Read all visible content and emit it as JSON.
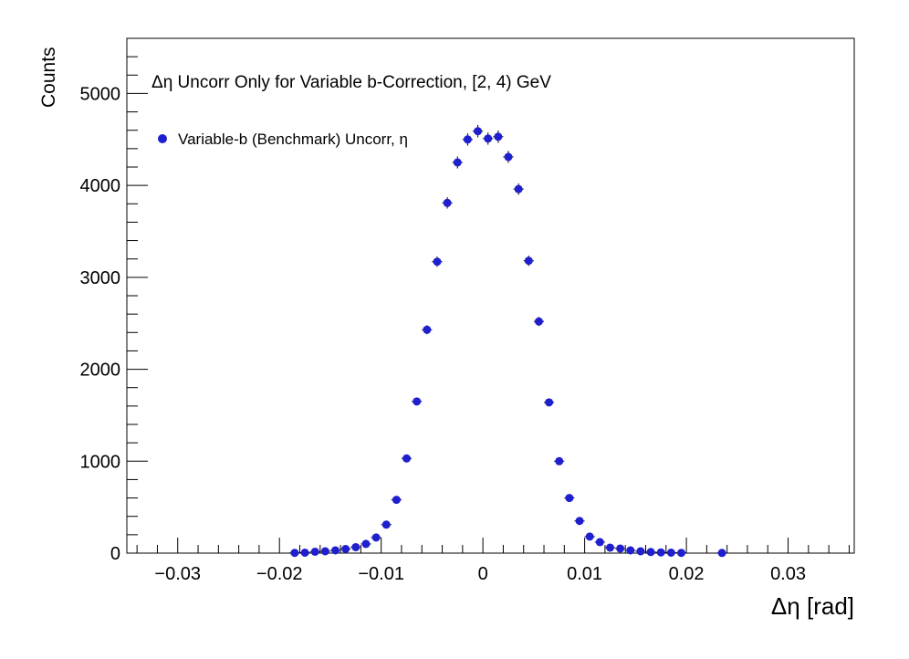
{
  "chart_data": {
    "type": "scatter",
    "title": "Δη Uncorr Only for Variable b-Correction, [2, 4) GeV",
    "xlabel": "Δη  [rad]",
    "ylabel": "Counts",
    "xlim": [
      -0.035,
      0.0365
    ],
    "ylim": [
      0,
      5600
    ],
    "x_major_ticks": [
      -0.03,
      -0.02,
      -0.01,
      0,
      0.01,
      0.02,
      0.03
    ],
    "x_tick_labels": [
      "−0.03",
      "−0.02",
      "−0.01",
      "0",
      "0.01",
      "0.02",
      "0.03"
    ],
    "y_major_ticks": [
      0,
      1000,
      2000,
      3000,
      4000,
      5000
    ],
    "y_tick_labels": [
      "0",
      "1000",
      "2000",
      "3000",
      "4000",
      "5000"
    ],
    "grid": false,
    "legend_position": "top-left",
    "marker_color": "#1f1fcf",
    "series": [
      {
        "name": "Variable-b (Benchmark) Uncorr, η",
        "x": [
          -0.0185,
          -0.0175,
          -0.0165,
          -0.0155,
          -0.0145,
          -0.0135,
          -0.0125,
          -0.0115,
          -0.0105,
          -0.0095,
          -0.0085,
          -0.0075,
          -0.0065,
          -0.0055,
          -0.0045,
          -0.0035,
          -0.0025,
          -0.0015,
          -0.0005,
          0.0005,
          0.0015,
          0.0025,
          0.0035,
          0.0045,
          0.0055,
          0.0065,
          0.0075,
          0.0085,
          0.0095,
          0.0105,
          0.0115,
          0.0125,
          0.0135,
          0.0145,
          0.0155,
          0.0165,
          0.0175,
          0.0185,
          0.0195,
          0.0235
        ],
        "y": [
          3,
          5,
          15,
          20,
          30,
          45,
          65,
          100,
          170,
          310,
          580,
          1030,
          1650,
          2430,
          3170,
          3810,
          4250,
          4500,
          4590,
          4510,
          4530,
          4310,
          3960,
          3180,
          2520,
          1640,
          1000,
          600,
          350,
          180,
          120,
          60,
          50,
          30,
          20,
          12,
          8,
          5,
          3,
          2
        ]
      }
    ]
  }
}
